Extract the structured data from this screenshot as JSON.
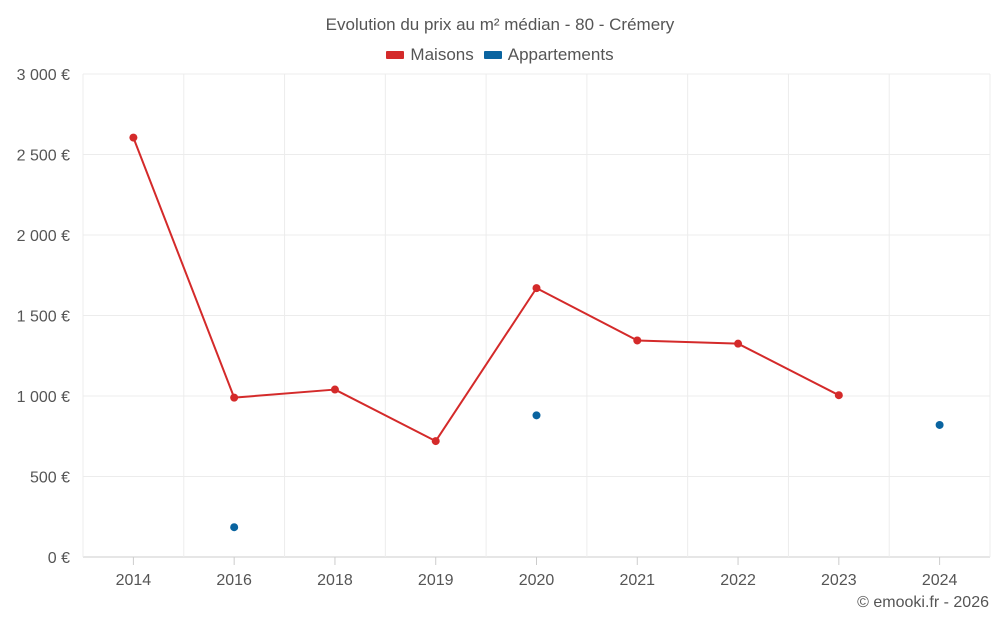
{
  "chart_data": {
    "type": "line",
    "title": "Evolution du prix au m² médian - 80 - Crémery",
    "categories": [
      "2014",
      "2016",
      "2018",
      "2019",
      "2020",
      "2021",
      "2022",
      "2023",
      "2024"
    ],
    "y_ticks": [
      "0 €",
      "500 €",
      "1 000 €",
      "1 500 €",
      "2 000 €",
      "2 500 €",
      "3 000 €"
    ],
    "ylim": [
      0,
      3000
    ],
    "grid": true,
    "legend_position": "top-center",
    "series": [
      {
        "name": "Maisons",
        "color": "#d42a2a",
        "values": [
          2605,
          990,
          1040,
          720,
          1670,
          1345,
          1325,
          1005,
          null
        ]
      },
      {
        "name": "Appartements",
        "color": "#0a64a0",
        "values": [
          null,
          185,
          null,
          null,
          880,
          null,
          null,
          null,
          820
        ]
      }
    ],
    "xlabel": "",
    "ylabel": ""
  },
  "credit": "© emooki.fr - 2026"
}
